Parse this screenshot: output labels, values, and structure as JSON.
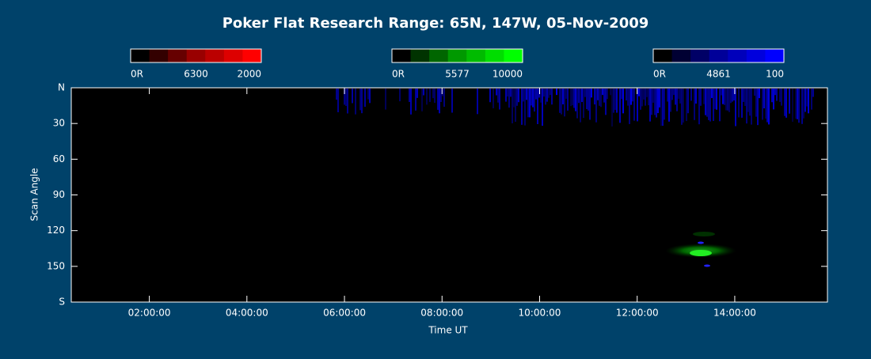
{
  "chart_data": {
    "type": "keogram",
    "title": "Poker Flat Research Range: 65N, 147W, 05-Nov-2009",
    "colorbars": [
      {
        "name": "6300",
        "colors": [
          "#000000",
          "#330000",
          "#660000",
          "#990000",
          "#bb0000",
          "#dd0000",
          "#ff0000"
        ],
        "ticks": [
          {
            "value": 0,
            "label": "0R"
          },
          2000
        ]
      },
      {
        "name": "5577",
        "colors": [
          "#000000",
          "#003300",
          "#006600",
          "#009900",
          "#00bb00",
          "#00dd00",
          "#00ff00"
        ],
        "ticks": [
          {
            "value": 0,
            "label": "0R"
          },
          10000
        ]
      },
      {
        "name": "4861",
        "colors": [
          "#000000",
          "#000033",
          "#000066",
          "#000099",
          "#0000bb",
          "#0000dd",
          "#0000ff"
        ],
        "ticks": [
          {
            "value": 0,
            "label": "0R"
          },
          100
        ]
      }
    ],
    "xlabel": "Time UT",
    "ylabel": "Scan Angle",
    "xlim": [
      0.4,
      15.9
    ],
    "xticks": [
      {
        "value": 2,
        "label": "02:00:00"
      },
      {
        "value": 4,
        "label": "04:00:00"
      },
      {
        "value": 6,
        "label": "06:00:00"
      },
      {
        "value": 8,
        "label": "08:00:00"
      },
      {
        "value": 10,
        "label": "10:00:00"
      },
      {
        "value": 12,
        "label": "12:00:00"
      },
      {
        "value": 14,
        "label": "14:00:00"
      }
    ],
    "ylim": [
      0,
      180
    ],
    "y_reversed": true,
    "yticks": [
      {
        "value": 0,
        "label": "N"
      },
      30,
      60,
      90,
      120,
      150,
      {
        "value": 180,
        "label": "S"
      }
    ]
  }
}
